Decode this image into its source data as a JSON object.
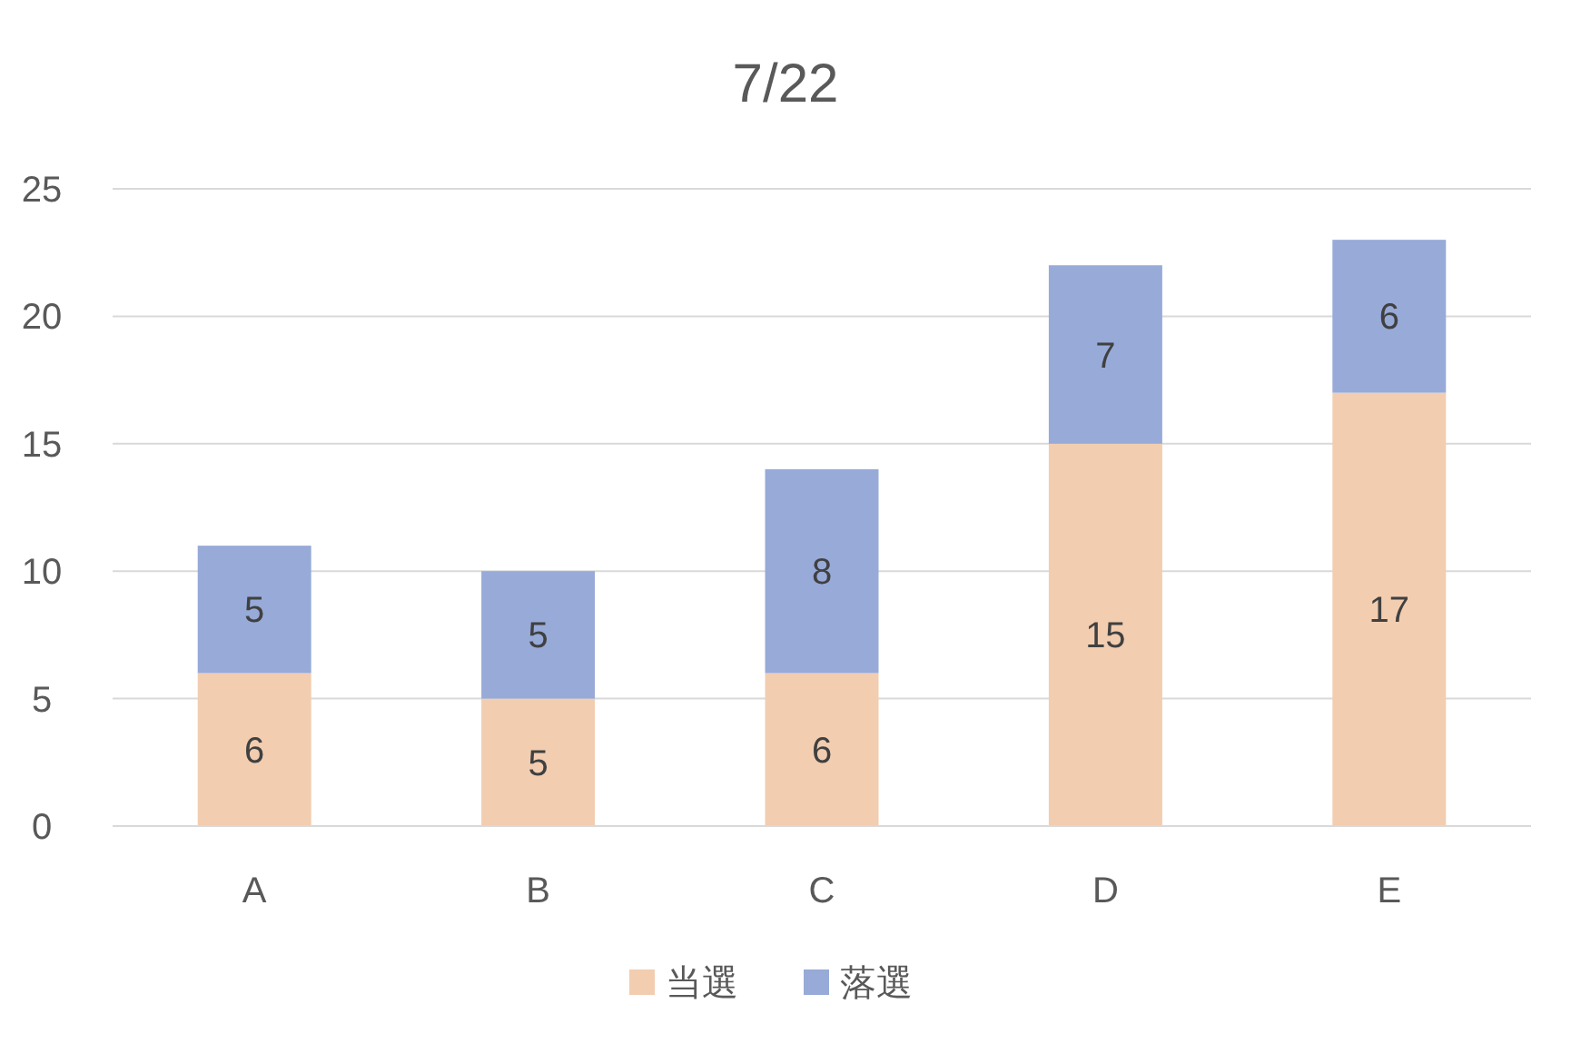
{
  "chart_data": {
    "type": "bar",
    "title": "7/22",
    "categories": [
      "A",
      "B",
      "C",
      "D",
      "E"
    ],
    "series": [
      {
        "name": "当選",
        "color": "#f2cdb0",
        "values": [
          6,
          5,
          6,
          15,
          17
        ]
      },
      {
        "name": "落選",
        "color": "#97aad8",
        "values": [
          5,
          5,
          8,
          7,
          6
        ]
      }
    ],
    "stacked": true,
    "ylim": [
      0,
      25
    ],
    "yticks": [
      0,
      5,
      10,
      15,
      20,
      25
    ],
    "grid": "y",
    "legend": "bottom",
    "data_labels": true
  }
}
